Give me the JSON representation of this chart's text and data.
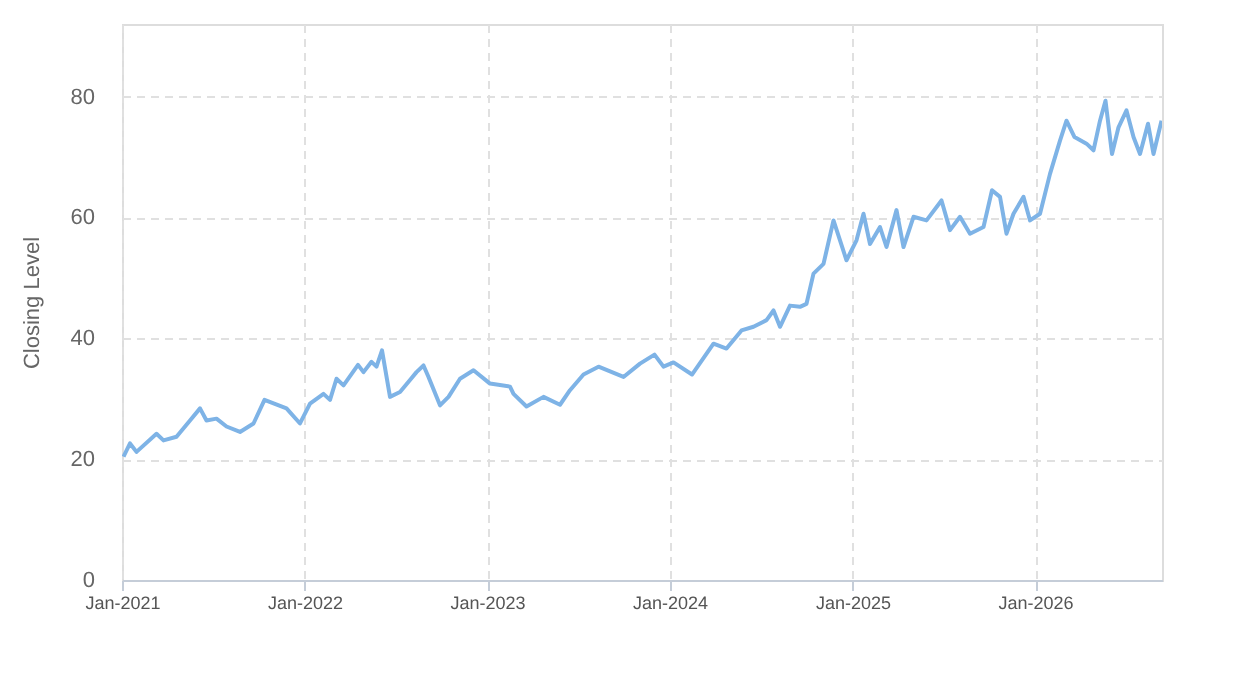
{
  "chart_data": {
    "type": "line",
    "ylabel": "Closing Level",
    "xlim": [
      "2021-01-01",
      "2026-09-12"
    ],
    "ylim": [
      0,
      92
    ],
    "yticks": [
      0,
      20,
      40,
      60,
      80
    ],
    "xticks": [
      {
        "value": "2021-01-01",
        "label": "Jan-2021"
      },
      {
        "value": "2022-01-01",
        "label": "Jan-2022"
      },
      {
        "value": "2023-01-01",
        "label": "Jan-2023"
      },
      {
        "value": "2024-01-01",
        "label": "Jan-2024"
      },
      {
        "value": "2025-01-01",
        "label": "Jan-2025"
      },
      {
        "value": "2026-01-01",
        "label": "Jan-2026"
      }
    ],
    "grid": true,
    "marker": "none",
    "line_style": "solid",
    "x": [
      "2021-01-04",
      "2021-01-17",
      "2021-01-30",
      "2021-03-11",
      "2021-03-25",
      "2021-04-20",
      "2021-05-17",
      "2021-06-06",
      "2021-06-19",
      "2021-07-09",
      "2021-07-29",
      "2021-08-25",
      "2021-09-21",
      "2021-10-13",
      "2021-11-26",
      "2021-12-23",
      "2022-01-12",
      "2022-02-08",
      "2022-02-21",
      "2022-03-06",
      "2022-03-20",
      "2022-04-18",
      "2022-04-29",
      "2022-05-15",
      "2022-05-25",
      "2022-06-05",
      "2022-06-21",
      "2022-07-11",
      "2022-07-31",
      "2022-08-13",
      "2022-08-27",
      "2022-09-06",
      "2022-09-29",
      "2022-10-16",
      "2022-11-08",
      "2022-12-05",
      "2023-01-07",
      "2023-02-16",
      "2023-02-23",
      "2023-03-21",
      "2023-04-24",
      "2023-05-27",
      "2023-06-16",
      "2023-07-13",
      "2023-08-12",
      "2023-10-01",
      "2023-11-03",
      "2023-12-02",
      "2023-12-20",
      "2024-01-09",
      "2024-02-15",
      "2024-03-29",
      "2024-04-24",
      "2024-05-24",
      "2024-06-17",
      "2024-07-13",
      "2024-07-27",
      "2024-08-09",
      "2024-08-29",
      "2024-09-18",
      "2024-10-01",
      "2024-10-15",
      "2024-11-04",
      "2024-11-24",
      "2024-12-20",
      "2025-01-09",
      "2025-01-23",
      "2025-02-05",
      "2025-02-25",
      "2025-03-10",
      "2025-03-30",
      "2025-04-13",
      "2025-05-03",
      "2025-05-29",
      "2025-06-28",
      "2025-07-15",
      "2025-08-04",
      "2025-08-24",
      "2025-09-20",
      "2025-10-07",
      "2025-10-23",
      "2025-11-05",
      "2025-11-19",
      "2025-12-09",
      "2025-12-22",
      "2026-01-11",
      "2026-01-31",
      "2026-02-20",
      "2026-03-05",
      "2026-03-21",
      "2026-04-14",
      "2026-04-28",
      "2026-05-11",
      "2026-05-22",
      "2026-06-04",
      "2026-06-17",
      "2026-07-03",
      "2026-07-17",
      "2026-07-30",
      "2026-08-15",
      "2026-08-26",
      "2026-09-11"
    ],
    "series": [
      {
        "color": "#7eb3e6",
        "values": [
          20.4,
          22.6,
          21.2,
          24.2,
          23.1,
          23.7,
          26.4,
          28.4,
          26.4,
          26.7,
          25.4,
          24.5,
          25.9,
          29.8,
          28.4,
          25.9,
          29.2,
          30.8,
          29.8,
          33.3,
          32.2,
          35.6,
          34.4,
          36.1,
          35.3,
          38.0,
          30.3,
          31.1,
          33.1,
          34.4,
          35.5,
          33.6,
          28.9,
          30.3,
          33.3,
          34.7,
          32.5,
          32.0,
          30.8,
          28.7,
          30.3,
          29.0,
          31.4,
          34.0,
          35.3,
          33.6,
          35.8,
          37.3,
          35.3,
          36.0,
          34.0,
          39.1,
          38.3,
          41.3,
          41.9,
          43.0,
          44.6,
          41.9,
          45.4,
          45.2,
          45.7,
          50.7,
          52.3,
          59.5,
          52.9,
          56.2,
          60.6,
          55.6,
          58.4,
          55.1,
          61.2,
          55.1,
          60.1,
          59.5,
          62.8,
          57.9,
          60.1,
          57.3,
          58.4,
          64.5,
          63.4,
          57.3,
          60.6,
          63.4,
          59.5,
          60.6,
          67.2,
          72.7,
          76.0,
          73.3,
          72.2,
          71.1,
          76.0,
          79.3,
          70.5,
          74.9,
          77.7,
          73.3,
          70.5,
          75.5,
          70.5,
          76.0
        ]
      }
    ]
  }
}
